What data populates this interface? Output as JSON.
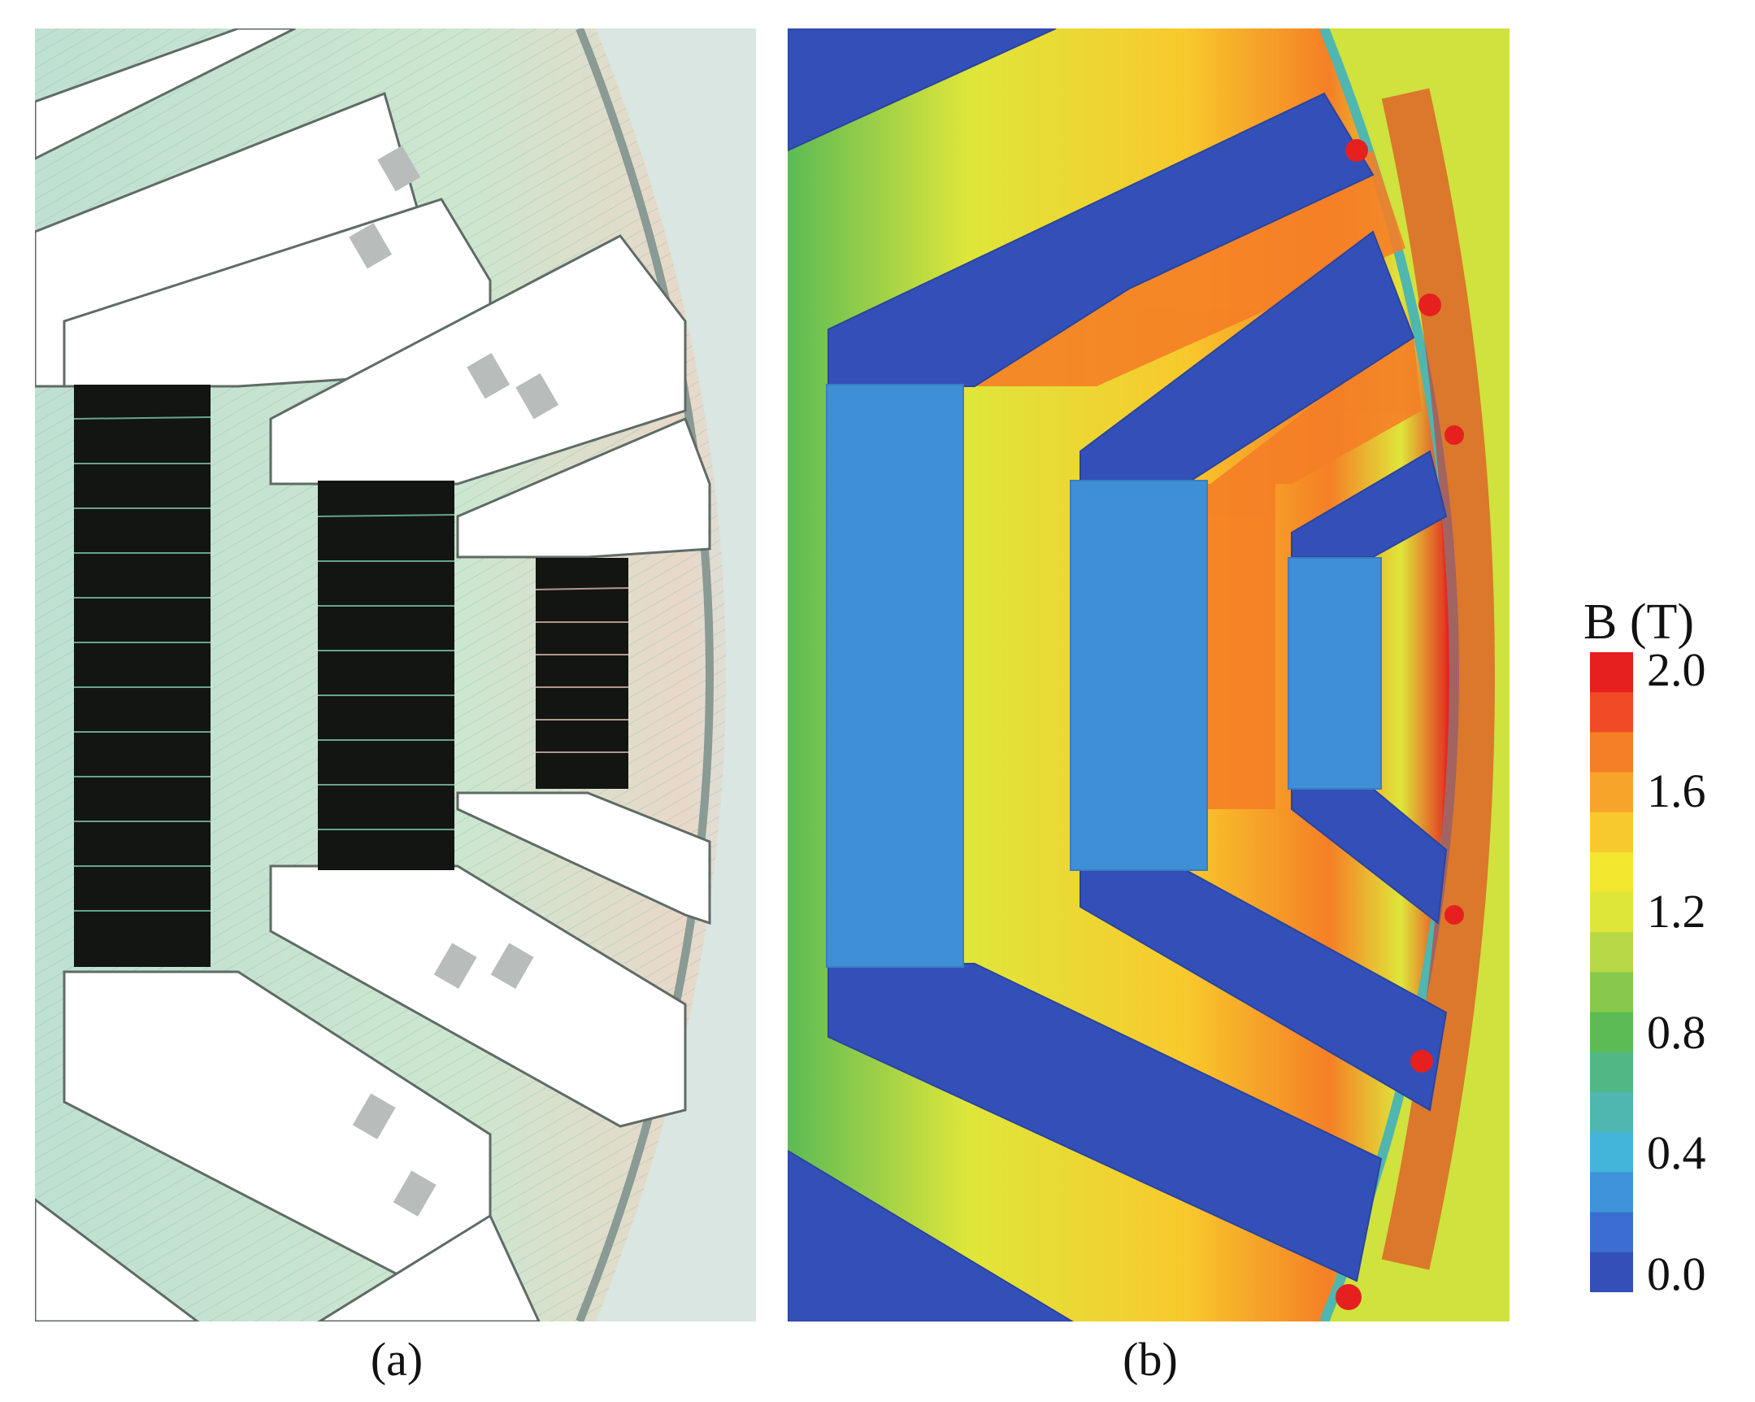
{
  "captions": {
    "a": "(a)",
    "b": "(b)"
  },
  "colorbar": {
    "title": "B (T)",
    "ticks": [
      "2.0",
      "1.6",
      "1.2",
      "0.8",
      "0.4",
      "0.0"
    ],
    "range": [
      0.0,
      2.0
    ],
    "colors": [
      "#e5201f",
      "#f04a26",
      "#f57f26",
      "#f7a52a",
      "#f8c92c",
      "#f3e62f",
      "#dfe63a",
      "#b6d945",
      "#86c94c",
      "#5cbb55",
      "#51b885",
      "#4fb6b0",
      "#43b4da",
      "#3f93da",
      "#3b6ed0",
      "#3350b8"
    ]
  },
  "colors": {
    "magnet": "#121512",
    "flux_low": "#3350b8",
    "flux_mid": "#dfe63a",
    "flux_high": "#e5201f",
    "magnet_cavity": "#3f8fd6"
  }
}
